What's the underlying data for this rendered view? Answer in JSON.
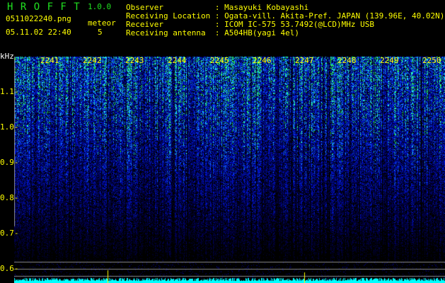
{
  "header": {
    "app_title": "H R O F F T",
    "version": "1.0.0",
    "filename": "0511022240.png",
    "datetime": "05.11.02 22:40",
    "meteor_label": "meteor",
    "meteor_count": "5",
    "info": [
      {
        "label": "Observer          ",
        "value": ": Masayuki Kobayashi"
      },
      {
        "label": "Receiving Location",
        "value": ": Ogata-vill. Akita-Pref. JAPAN (139.96E, 40.02N)"
      },
      {
        "label": "Receiver          ",
        "value": ": ICOM IC-575 53.7492(@LCD)MHz USB"
      },
      {
        "label": "Receiving antenna ",
        "value": ": A504HB(yagi 4el)"
      }
    ]
  },
  "chart_data": {
    "type": "heatmap",
    "ylabel": "kHz",
    "ylim": [
      0.58,
      1.18
    ],
    "yticks": [
      "1.1",
      "1.0",
      "0.9",
      "0.8",
      "0.7",
      "0.6"
    ],
    "xticks": [
      "2241",
      "2242",
      "2243",
      "2244",
      "2245",
      "2246",
      "2247",
      "2248",
      "2249",
      "2250"
    ],
    "colors": {
      "background": "#000000",
      "low": "#0000a0",
      "mid": "#2050ff",
      "high": "#40ffff",
      "peak": "#40ff40",
      "activity": "#00ffff",
      "marker": "#ffff00"
    }
  }
}
